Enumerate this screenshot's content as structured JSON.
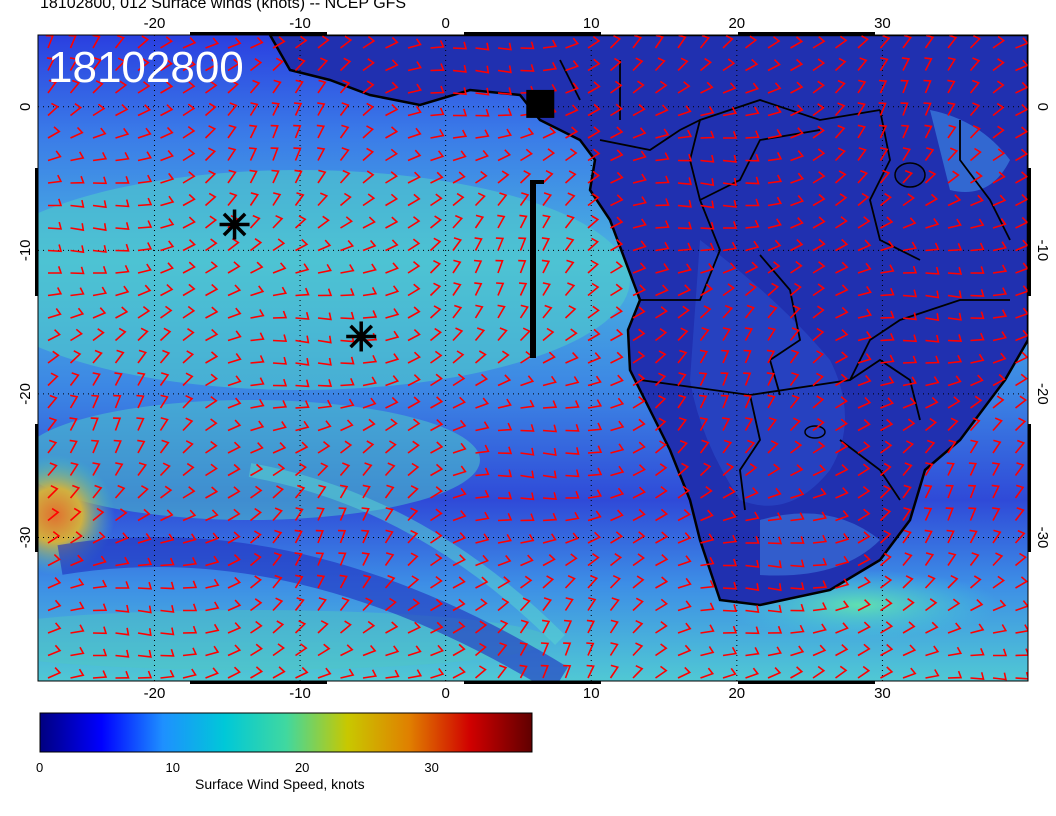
{
  "title": "18102800, 012 Surface winds (knots) -- NCEP GFS",
  "stamp": "18102800",
  "map": {
    "lon_range": [
      -28,
      40
    ],
    "lat_range": [
      -40,
      5
    ],
    "lon_ticks": [
      "-20",
      "-10",
      "0",
      "10",
      "20",
      "30"
    ],
    "lat_ticks": [
      "0",
      "-10",
      "-20",
      "-30"
    ],
    "lon_tick_values": [
      -20,
      -10,
      0,
      10,
      20,
      30
    ],
    "lat_tick_values": [
      0,
      -10,
      -20,
      -30
    ],
    "gridlines": "dotted",
    "wind_barb_color": "#ff0000",
    "coastline_color": "#000000",
    "markers": [
      {
        "type": "asterisk",
        "lon": -14.5,
        "lat": -8.2
      },
      {
        "type": "asterisk",
        "lon": -5.8,
        "lat": -16.0
      },
      {
        "type": "square",
        "lon": 6.5,
        "lat": 0.2
      }
    ]
  },
  "colorbar": {
    "title": "Surface Wind Speed, knots",
    "min": 0,
    "max": 38,
    "tick_labels": [
      "0",
      "10",
      "20",
      "30"
    ],
    "tick_values": [
      0,
      10,
      20,
      30
    ],
    "colors": [
      "#000080",
      "#0000ff",
      "#1e90ff",
      "#00c8d8",
      "#40d8a0",
      "#c8c800",
      "#e08000",
      "#d00000",
      "#600000"
    ]
  }
}
